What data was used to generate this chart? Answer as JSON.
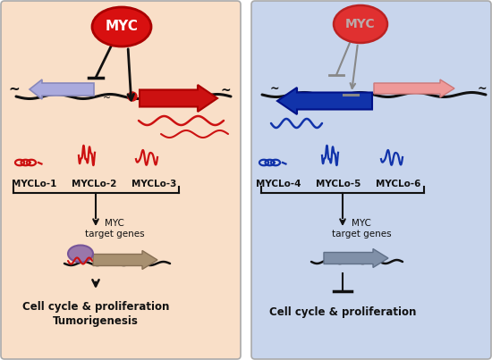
{
  "fig_w": 5.5,
  "fig_h": 4.03,
  "dpi": 100,
  "left_bg": "#F9DFC8",
  "right_bg": "#C8D5EC",
  "panel_edge": "#AAAAAA",
  "left_myc_fill": "#D81010",
  "left_myc_edge": "#AA0000",
  "right_myc_fill": "#E03030",
  "right_myc_edge": "#BB2222",
  "right_myc_text": "#BBAAAA",
  "blue_lavender_fill": "#AAAADD",
  "blue_lavender_edge": "#8888BB",
  "red_fill": "#CC1111",
  "red_edge": "#AA0000",
  "dark_blue_fill": "#1133AA",
  "dark_blue_edge": "#001188",
  "pink_fill": "#EE9999",
  "pink_edge": "#CC7777",
  "left_rna": "#CC1111",
  "right_rna": "#1133AA",
  "tan_fill": "#A89070",
  "tan_edge": "#887055",
  "steel_fill": "#8090A8",
  "steel_edge": "#607088",
  "promo_fill": "#9977AA",
  "promo_edge": "#775599",
  "gray_line": "#888888",
  "black": "#111111",
  "left_labels": [
    "MYCLo-1",
    "MYCLo-2",
    "MYCLo-3"
  ],
  "right_labels": [
    "MYCLo-4",
    "MYCLo-5",
    "MYCLo-6"
  ],
  "left_b1": "Cell cycle & proliferation",
  "left_b2": "Tumorigenesis",
  "right_b1": "Cell cycle & proliferation",
  "left_tg": "MYC\ntarget genes",
  "right_tg": "MYC\ntarget genes"
}
